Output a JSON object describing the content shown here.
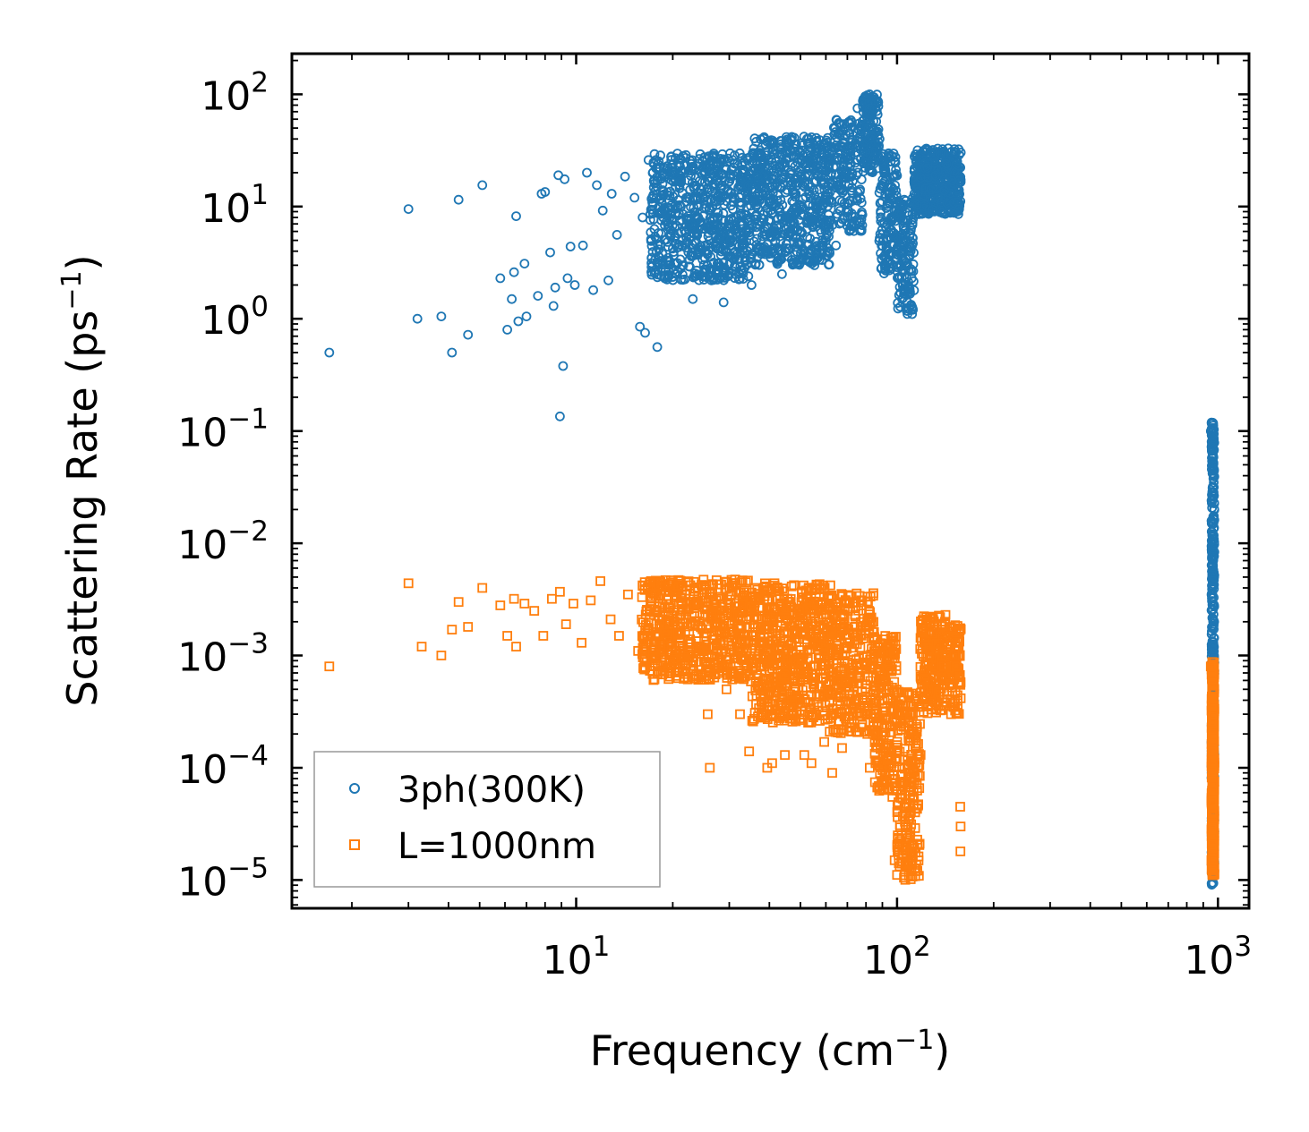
{
  "chart_data": {
    "type": "scatter",
    "xscale": "log",
    "yscale": "log",
    "xlim": [
      1.3,
      1250
    ],
    "ylim": [
      5.6e-06,
      230
    ],
    "xlabel": {
      "text": "Frequency (cm",
      "sup": "−1",
      "close": ")"
    },
    "ylabel": {
      "text": "Scattering Rate (ps",
      "sup": "−1",
      "close": ")"
    },
    "x_ticks": [
      {
        "base": "10",
        "exp": "1",
        "value": 10
      },
      {
        "base": "10",
        "exp": "2",
        "value": 100
      },
      {
        "base": "10",
        "exp": "3",
        "value": 1000
      }
    ],
    "y_ticks": [
      {
        "base": "10",
        "exp": "2",
        "value": 100
      },
      {
        "base": "10",
        "exp": "1",
        "value": 10
      },
      {
        "base": "10",
        "exp": "0",
        "value": 1
      },
      {
        "base": "10",
        "exp": "−1",
        "value": 0.1
      },
      {
        "base": "10",
        "exp": "−2",
        "value": 0.01
      },
      {
        "base": "10",
        "exp": "−3",
        "value": 0.001
      },
      {
        "base": "10",
        "exp": "−4",
        "value": 0.0001
      },
      {
        "base": "10",
        "exp": "−5",
        "value": 1e-05
      }
    ],
    "legend_position": "lower-left",
    "series": [
      {
        "name": "3ph(300K)",
        "marker": "circle",
        "color": "#1f77b4",
        "points": [
          [
            1.7,
            0.5
          ],
          [
            3.0,
            9.5
          ],
          [
            3.2,
            1.0
          ],
          [
            3.8,
            1.05
          ],
          [
            4.1,
            0.5
          ],
          [
            4.3,
            11.5
          ],
          [
            4.6,
            0.72
          ],
          [
            5.1,
            15.5
          ],
          [
            5.8,
            2.3
          ],
          [
            6.1,
            0.8
          ],
          [
            6.3,
            1.5
          ],
          [
            6.4,
            2.6
          ],
          [
            6.5,
            8.2
          ],
          [
            6.6,
            0.95
          ],
          [
            6.9,
            3.1
          ],
          [
            7.0,
            1.05
          ],
          [
            7.6,
            1.6
          ],
          [
            7.8,
            13.0
          ],
          [
            8.0,
            13.5
          ],
          [
            8.3,
            3.9
          ],
          [
            8.5,
            1.3
          ],
          [
            8.6,
            1.9
          ],
          [
            8.8,
            19.0
          ],
          [
            8.9,
            0.135
          ],
          [
            9.1,
            0.38
          ],
          [
            9.2,
            17.5
          ],
          [
            9.4,
            2.3
          ],
          [
            9.6,
            4.4
          ],
          [
            9.9,
            2.0
          ],
          [
            10.5,
            4.5
          ],
          [
            10.8,
            20.0
          ],
          [
            11.3,
            1.8
          ],
          [
            11.6,
            15.5
          ],
          [
            12.1,
            9.2
          ],
          [
            12.6,
            2.2
          ],
          [
            12.9,
            13.0
          ],
          [
            13.4,
            5.6
          ],
          [
            14.2,
            18.5
          ],
          [
            15.2,
            12.0
          ],
          [
            15.8,
            0.85
          ],
          [
            16.1,
            8.0
          ],
          [
            16.4,
            0.75
          ],
          [
            16.8,
            26.0
          ],
          [
            17.2,
            3.5
          ],
          [
            17.9,
            0.56
          ],
          [
            18.6,
            14.0
          ],
          [
            19.2,
            7.5
          ],
          [
            19.9,
            22.0
          ],
          [
            20.5,
            2.5
          ],
          [
            21.2,
            10.0
          ],
          [
            22.0,
            4.3
          ],
          [
            23.1,
            1.5
          ],
          [
            24.3,
            17.0
          ],
          [
            25.2,
            6.3
          ],
          [
            26.4,
            2.2
          ],
          [
            27.3,
            11.0
          ],
          [
            28.8,
            1.4
          ],
          [
            30.1,
            3.6
          ],
          [
            31.2,
            24.0
          ],
          [
            33.4,
            8.5
          ],
          [
            35.2,
            2.0
          ],
          [
            37.1,
            13.5
          ],
          [
            39.4,
            4.6
          ],
          [
            41.2,
            32.0
          ],
          [
            43.8,
            2.5
          ],
          [
            46.3,
            18.0
          ],
          [
            49.1,
            6.2
          ],
          [
            52.4,
            40.0
          ],
          [
            55.3,
            3.0
          ],
          [
            58.7,
            21.0
          ],
          [
            61.2,
            6.8
          ],
          [
            64.5,
            4.5
          ],
          [
            68.2,
            34.0
          ],
          [
            71.5,
            55.0
          ],
          [
            75.3,
            75.0
          ],
          [
            79.6,
            96.0
          ],
          [
            82.1,
            100.0
          ],
          [
            85.3,
            75.0
          ],
          [
            88.2,
            40.0
          ],
          [
            90.4,
            16.0
          ],
          [
            92.6,
            3.5
          ],
          [
            95.3,
            6.2
          ],
          [
            98.1,
            8.0
          ],
          [
            101.2,
            2.3
          ],
          [
            104.3,
            4.0
          ],
          [
            107.5,
            1.9
          ],
          [
            110.1,
            1.3
          ],
          [
            111.4,
            1.1
          ],
          [
            113.2,
            13.0
          ],
          [
            118.5,
            18.0
          ],
          [
            124.3,
            22.0
          ],
          [
            130.4,
            27.0
          ],
          [
            136.2,
            30.0
          ],
          [
            142.5,
            24.0
          ],
          [
            148.4,
            17.0
          ],
          [
            153.6,
            11.0
          ],
          [
            156.2,
            9.5
          ],
          [
            950,
            0.1
          ]
        ],
        "bands": [
          {
            "x": [
              17,
              35
            ],
            "y": [
              2.2,
              30
            ],
            "n": 700
          },
          {
            "x": [
              35,
              62
            ],
            "y": [
              3.0,
              42
            ],
            "n": 600
          },
          {
            "x": [
              62,
              78
            ],
            "y": [
              6.0,
              60
            ],
            "n": 180
          },
          {
            "x": [
              78,
              88
            ],
            "y": [
              20,
              100
            ],
            "n": 150
          },
          {
            "x": [
              88,
              100
            ],
            "y": [
              2.5,
              30
            ],
            "n": 140
          },
          {
            "x": [
              100,
              113
            ],
            "y": [
              1.1,
              12
            ],
            "n": 140
          },
          {
            "x": [
              113,
              158
            ],
            "y": [
              8.5,
              33
            ],
            "n": 450
          },
          {
            "x": [
              955,
              975
            ],
            "y": [
              9e-06,
              0.12
            ],
            "n": 450
          }
        ]
      },
      {
        "name": "L=1000nm",
        "marker": "square",
        "color": "#ff7f0e",
        "points": [
          [
            1.7,
            0.0008
          ],
          [
            3.0,
            0.0044
          ],
          [
            3.3,
            0.0012
          ],
          [
            3.8,
            0.001
          ],
          [
            4.1,
            0.0017
          ],
          [
            4.3,
            0.003
          ],
          [
            4.6,
            0.0018
          ],
          [
            5.1,
            0.004
          ],
          [
            5.8,
            0.0028
          ],
          [
            6.1,
            0.0015
          ],
          [
            6.4,
            0.0032
          ],
          [
            6.5,
            0.0012
          ],
          [
            6.9,
            0.0029
          ],
          [
            7.4,
            0.0025
          ],
          [
            7.9,
            0.0015
          ],
          [
            8.4,
            0.0032
          ],
          [
            8.9,
            0.0037
          ],
          [
            9.3,
            0.0019
          ],
          [
            9.8,
            0.0029
          ],
          [
            10.4,
            0.0013
          ],
          [
            11.1,
            0.0031
          ],
          [
            11.9,
            0.0046
          ],
          [
            12.8,
            0.0021
          ],
          [
            13.6,
            0.0015
          ],
          [
            14.5,
            0.0035
          ],
          [
            15.6,
            0.0011
          ],
          [
            17.1,
            0.0046
          ],
          [
            18.2,
            0.0019
          ],
          [
            19.6,
            0.00085
          ],
          [
            21.3,
            0.0025
          ],
          [
            23.1,
            0.00065
          ],
          [
            24.2,
            0.0011
          ],
          [
            25.7,
            0.0003
          ],
          [
            26.1,
            0.0001
          ],
          [
            28.2,
            0.0021
          ],
          [
            29.4,
            0.0005
          ],
          [
            31.1,
            0.00065
          ],
          [
            32.4,
            0.0003
          ],
          [
            34.6,
            0.00014
          ],
          [
            36.3,
            0.0015
          ],
          [
            38.1,
            0.0003
          ],
          [
            39.4,
            0.0001
          ],
          [
            40.8,
            0.00011
          ],
          [
            42.9,
            0.0012
          ],
          [
            44.7,
            0.00013
          ],
          [
            46.8,
            0.0003
          ],
          [
            49.3,
            0.0014
          ],
          [
            51.4,
            0.00013
          ],
          [
            54.1,
            0.00011
          ],
          [
            56.6,
            0.0012
          ],
          [
            59.3,
            0.00017
          ],
          [
            61.7,
            0.00021
          ],
          [
            62.8,
            9e-05
          ],
          [
            65.2,
            0.0006
          ],
          [
            67.4,
            0.00015
          ],
          [
            70.1,
            0.0013
          ],
          [
            72.6,
            0.00045
          ],
          [
            75.4,
            0.0007
          ],
          [
            78.3,
            0.0004
          ],
          [
            80.4,
            0.0003
          ],
          [
            82.2,
            0.0001
          ],
          [
            84.1,
            0.0002
          ],
          [
            86.8,
            0.0014
          ],
          [
            89.2,
            0.0009
          ],
          [
            91.4,
            0.0004
          ],
          [
            94.6,
            0.0001
          ],
          [
            96.7,
            5.5e-05
          ],
          [
            98.3,
            1.5e-05
          ],
          [
            100.5,
            2.5e-05
          ],
          [
            103.2,
            1.4e-05
          ],
          [
            106.4,
            2e-05
          ],
          [
            109.1,
            3.5e-05
          ],
          [
            111.6,
            1.8e-05
          ],
          [
            114.3,
            1.2e-05
          ],
          [
            116.2,
            0.0001
          ],
          [
            118.4,
            0.00013
          ],
          [
            122.1,
            0.0006
          ],
          [
            126.4,
            0.0011
          ],
          [
            131.3,
            0.0018
          ],
          [
            136.2,
            0.0022
          ],
          [
            141.6,
            0.0023
          ],
          [
            146.5,
            0.0018
          ],
          [
            151.2,
            0.001
          ],
          [
            155.1,
            0.00055
          ],
          [
            157.4,
            4.5e-05
          ],
          [
            157.6,
            1.8e-05
          ],
          [
            157.8,
            3e-05
          ],
          [
            950,
            0.0008
          ]
        ],
        "bands": [
          {
            "x": [
              16,
              35
            ],
            "y": [
              0.0006,
              0.0048
            ],
            "n": 600
          },
          {
            "x": [
              35,
              62
            ],
            "y": [
              0.00025,
              0.0044
            ],
            "n": 600
          },
          {
            "x": [
              62,
              85
            ],
            "y": [
              0.0002,
              0.0036
            ],
            "n": 300
          },
          {
            "x": [
              85,
              100
            ],
            "y": [
              6e-05,
              0.0015
            ],
            "n": 200
          },
          {
            "x": [
              100,
              118
            ],
            "y": [
              1e-05,
              0.0005
            ],
            "n": 220
          },
          {
            "x": [
              118,
              158
            ],
            "y": [
              0.0003,
              0.0023
            ],
            "n": 300
          },
          {
            "x": [
              955,
              975
            ],
            "y": [
              1.1e-05,
              0.0009
            ],
            "n": 350
          }
        ]
      }
    ]
  }
}
